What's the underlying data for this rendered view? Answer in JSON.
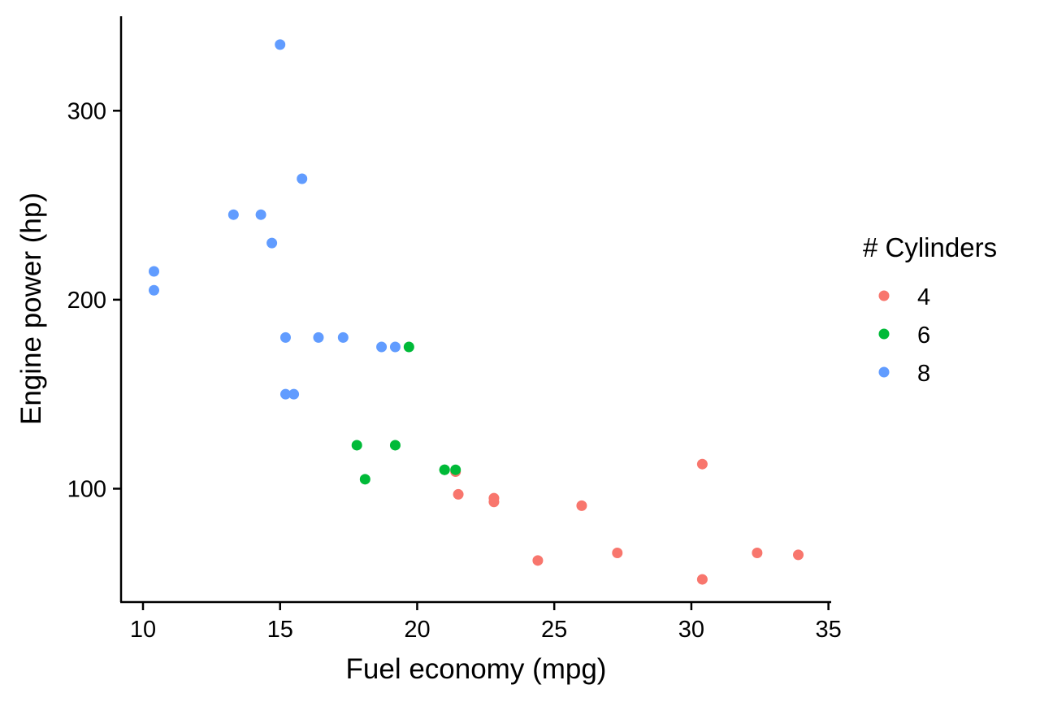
{
  "chart_data": {
    "type": "scatter",
    "title": "",
    "xlabel": "Fuel economy (mpg)",
    "ylabel": "Engine power (hp)",
    "xlim": [
      9.2,
      35.1
    ],
    "ylim": [
      40,
      350
    ],
    "xticks": [
      10,
      15,
      20,
      25,
      30,
      35
    ],
    "yticks": [
      100,
      200,
      300
    ],
    "grid": false,
    "legend": {
      "title": "# Cylinders",
      "position": "right",
      "entries": [
        "4",
        "6",
        "8"
      ]
    },
    "series": [
      {
        "name": "4",
        "color": "#F8766D",
        "x": [
          22.8,
          24.4,
          22.8,
          32.4,
          30.4,
          33.9,
          21.5,
          27.3,
          26.0,
          30.4,
          21.4
        ],
        "y": [
          93,
          62,
          95,
          66,
          52,
          65,
          97,
          66,
          91,
          113,
          109
        ]
      },
      {
        "name": "6",
        "color": "#00BA38",
        "x": [
          21.0,
          21.0,
          21.4,
          18.1,
          19.2,
          17.8,
          19.7
        ],
        "y": [
          110,
          110,
          110,
          105,
          123,
          123,
          175
        ]
      },
      {
        "name": "8",
        "color": "#619CFF",
        "x": [
          18.7,
          14.3,
          16.4,
          17.3,
          15.2,
          10.4,
          10.4,
          14.7,
          15.5,
          15.2,
          13.3,
          19.2,
          15.8,
          15.0
        ],
        "y": [
          175,
          245,
          180,
          180,
          180,
          205,
          215,
          230,
          150,
          150,
          245,
          175,
          264,
          335
        ]
      }
    ]
  }
}
